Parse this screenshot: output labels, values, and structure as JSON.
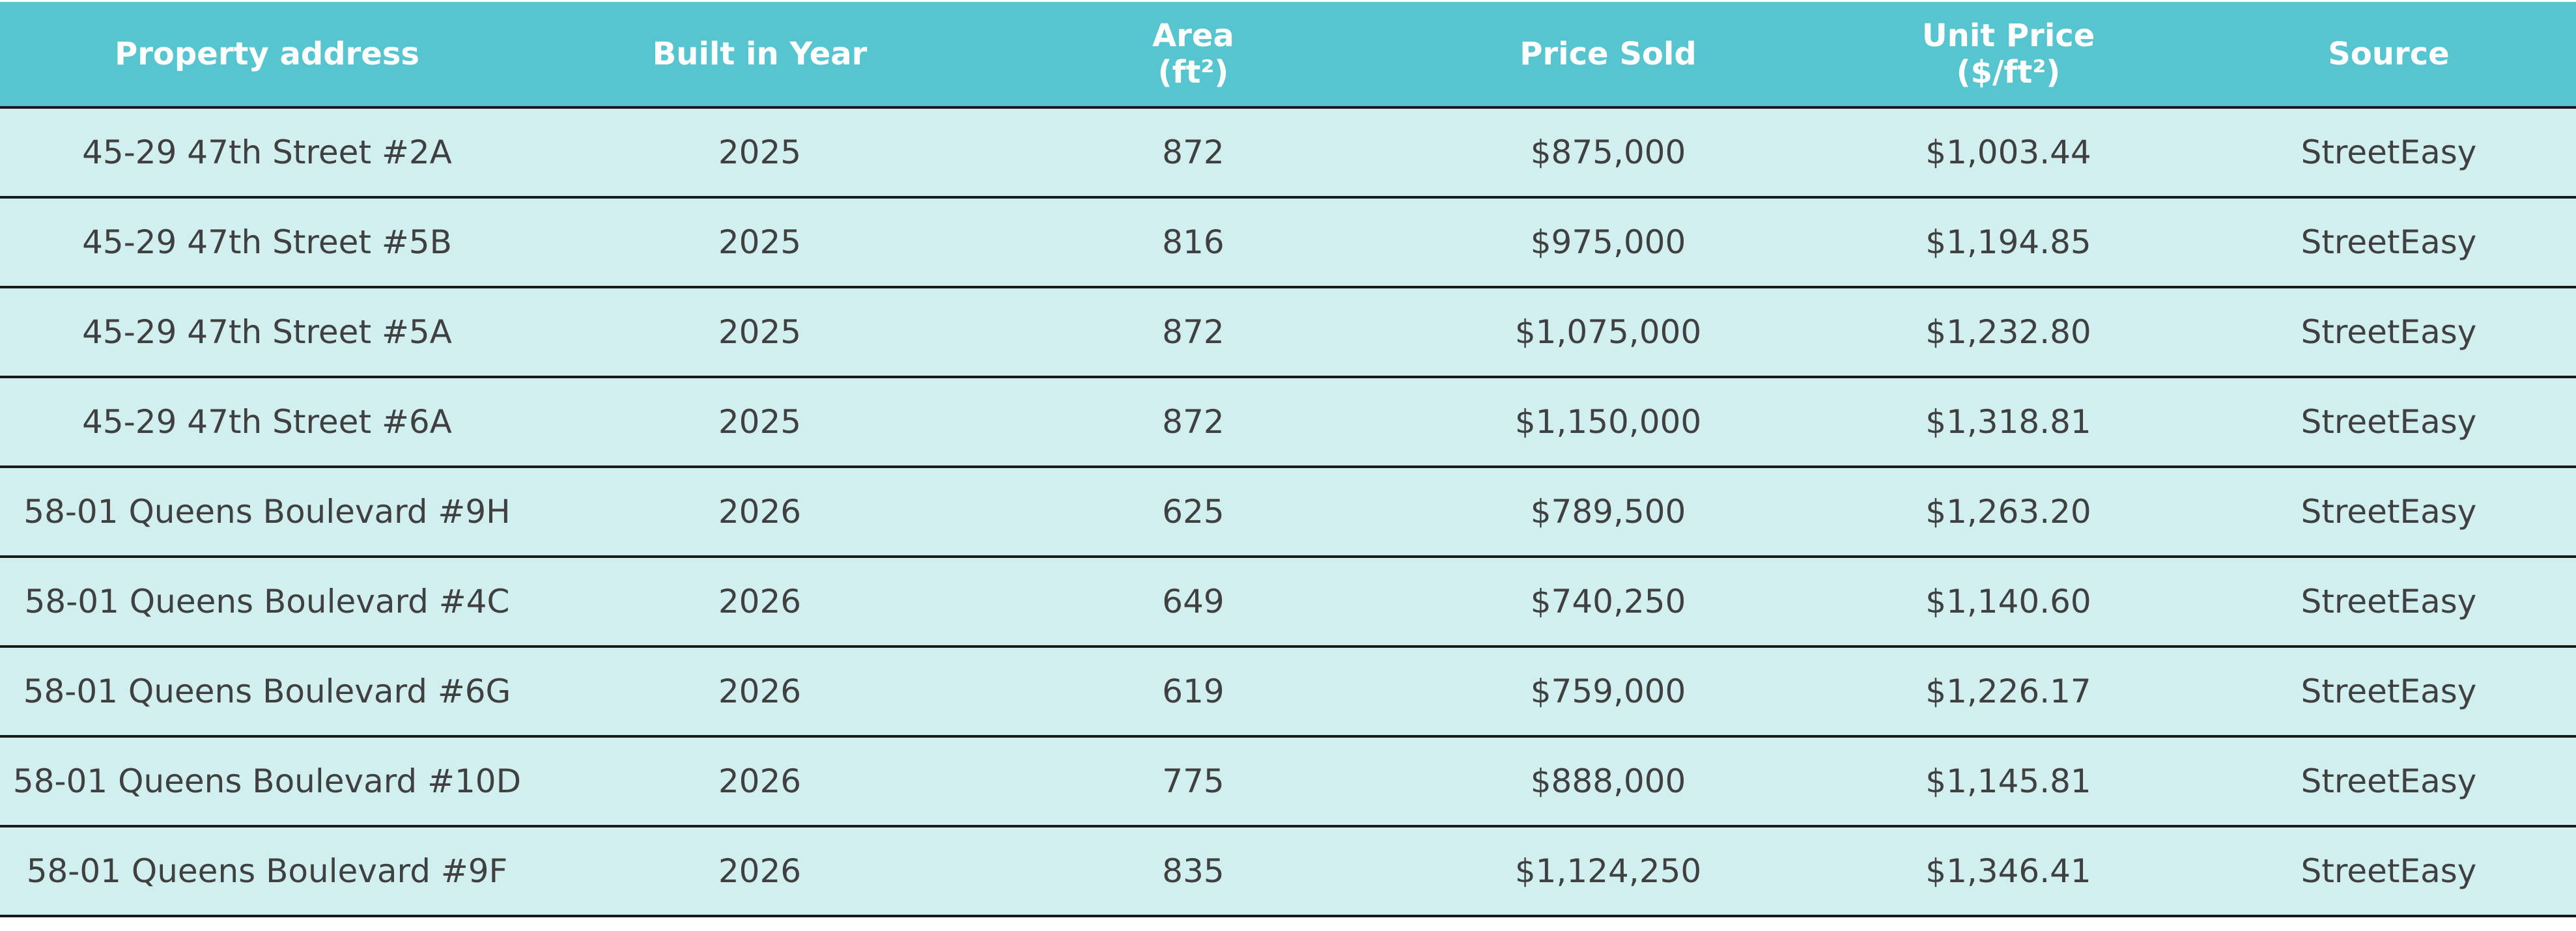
{
  "table": {
    "header": [
      "Property address",
      "Built in Year",
      "Area\n(ft²)",
      "Price Sold",
      "Unit Price\n($/ft²)",
      "Source"
    ],
    "rows": [
      [
        "45-29 47th Street #2A",
        "2025",
        "872",
        "$875,000",
        "$1,003.44",
        "StreetEasy"
      ],
      [
        "45-29 47th Street #5B",
        "2025",
        "816",
        "$975,000",
        "$1,194.85",
        "StreetEasy"
      ],
      [
        "45-29 47th Street #5A",
        "2025",
        "872",
        "$1,075,000",
        "$1,232.80",
        "StreetEasy"
      ],
      [
        "45-29 47th Street #6A",
        "2025",
        "872",
        "$1,150,000",
        "$1,318.81",
        "StreetEasy"
      ],
      [
        "58-01 Queens Boulevard #9H",
        "2026",
        "625",
        "$789,500",
        "$1,263.20",
        "StreetEasy"
      ],
      [
        "58-01 Queens Boulevard #4C",
        "2026",
        "649",
        "$740,250",
        "$1,140.60",
        "StreetEasy"
      ],
      [
        "58-01 Queens Boulevard #6G",
        "2026",
        "619",
        "$759,000",
        "$1,226.17",
        "StreetEasy"
      ],
      [
        "58-01 Queens Boulevard #10D",
        "2026",
        "775",
        "$888,000",
        "$1,145.81",
        "StreetEasy"
      ],
      [
        "58-01 Queens Boulevard #9F",
        "2026",
        "835",
        "$1,124,250",
        "$1,346.41",
        "StreetEasy"
      ]
    ]
  }
}
